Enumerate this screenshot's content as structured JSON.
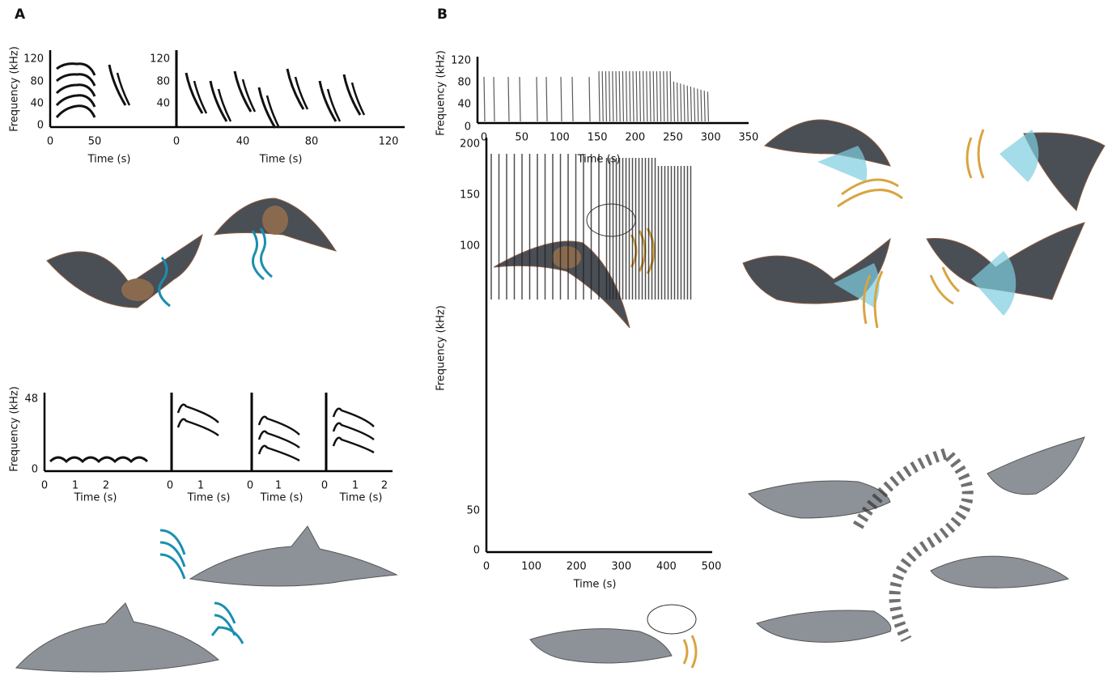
{
  "figure": {
    "panel_labels": [
      "A",
      "B"
    ],
    "plots": [
      {
        "y_label": "Frequency (kHz)",
        "y_ticks": [
          "0",
          "40",
          "80",
          "120"
        ],
        "axes": [
          {
            "x_ticks": [
              "0",
              "50"
            ],
            "x_label": "Time (s)"
          },
          {
            "x_ticks": [
              "0",
              "40",
              "80",
              "120"
            ],
            "x_label": "Time (s)",
            "y_ticks": [
              "40",
              "80",
              "120"
            ]
          }
        ]
      },
      {
        "y_label": "Frequency (kHz)",
        "y_ticks": [
          "0",
          "48"
        ],
        "axes": [
          {
            "x_ticks": [
              "0",
              "1",
              "2"
            ],
            "x_label": "Time (s)"
          },
          {
            "x_ticks": [
              "0",
              "1"
            ],
            "x_label": "Time (s)"
          },
          {
            "x_ticks": [
              "0",
              "1"
            ],
            "x_label": "Time (s)"
          },
          {
            "x_ticks": [
              "0",
              "1",
              "2"
            ],
            "x_label": "Time (s)"
          }
        ]
      },
      {
        "y_label": "Frequency (kHz)",
        "y_ticks": [
          "0",
          "40",
          "80",
          "120"
        ],
        "axes": [
          {
            "x_ticks": [
              "0",
              "50",
              "100",
              "150",
              "200",
              "250",
              "300",
              "350"
            ],
            "x_label": "Time (s)"
          }
        ]
      },
      {
        "y_label": "Frequency (kHz)",
        "y_ticks": [
          "0",
          "50",
          "100",
          "150",
          "200"
        ],
        "axes": [
          {
            "x_ticks": [
              "0",
              "100",
              "200",
              "300",
              "400",
              "500"
            ],
            "x_label": "Time (s)"
          }
        ]
      }
    ]
  }
}
